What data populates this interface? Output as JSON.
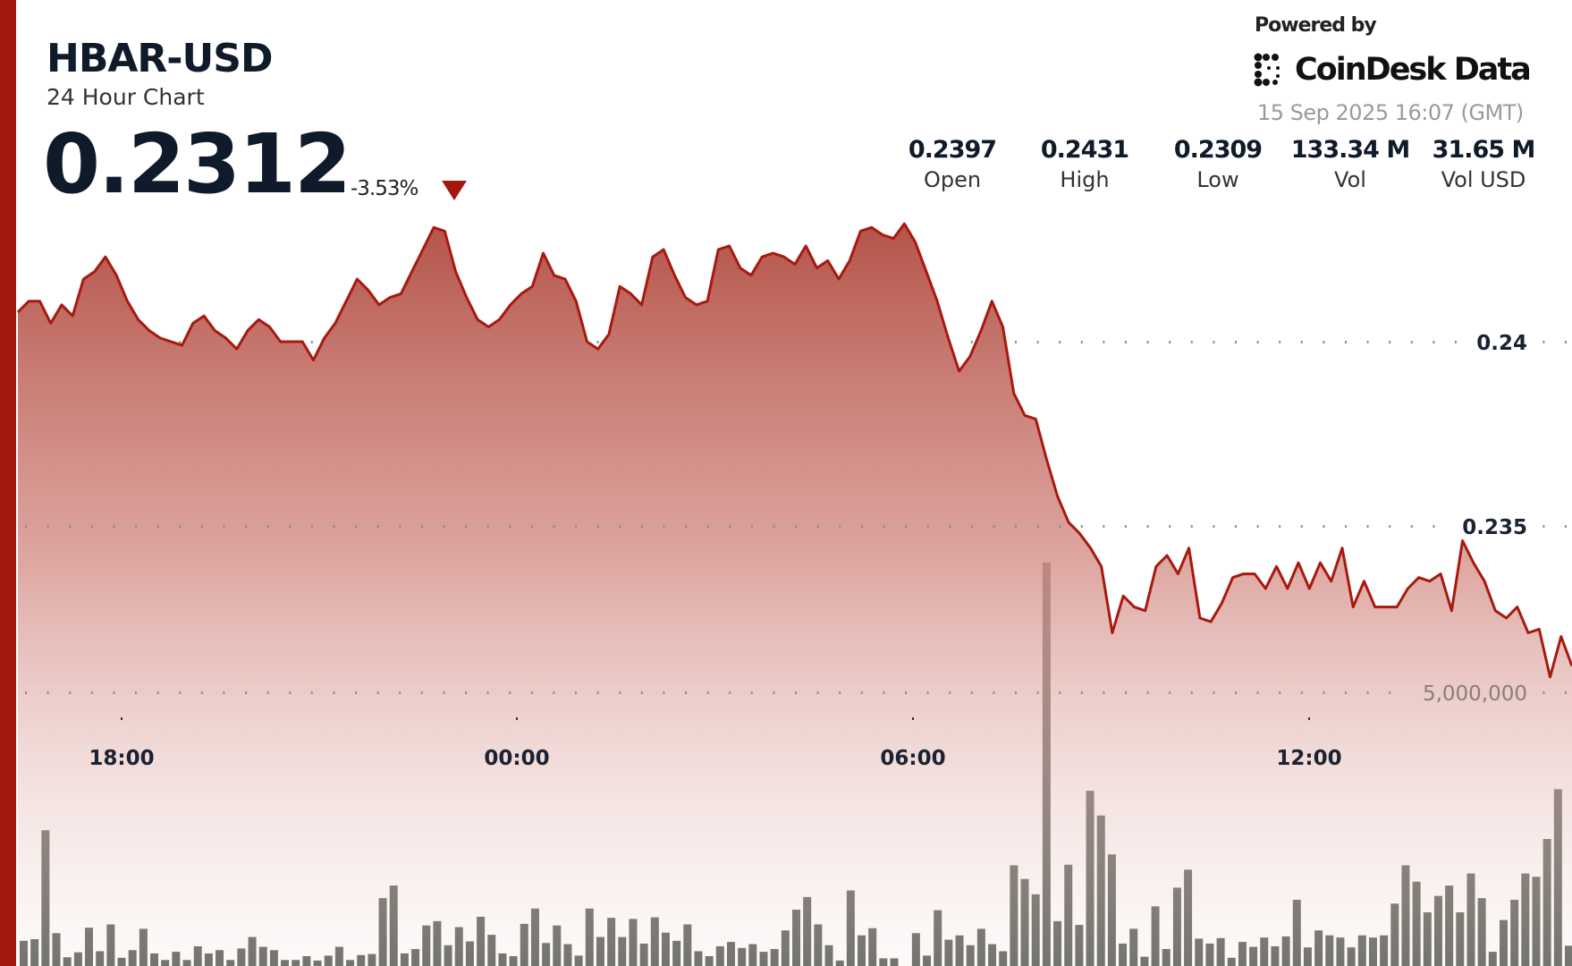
{
  "header": {
    "title": "HBAR-USD",
    "subtitle": "24 Hour Chart",
    "price": "0.2312",
    "change": "-3.53%",
    "change_direction": "down",
    "powered_by": "Powered by",
    "brand": "CoinDesk Data",
    "timestamp": "15 Sep 2025 16:07 (GMT)"
  },
  "stats": [
    {
      "value": "0.2397",
      "label": "Open"
    },
    {
      "value": "0.2431",
      "label": "High"
    },
    {
      "value": "0.2309",
      "label": "Low"
    },
    {
      "value": "133.34 M",
      "label": "Vol"
    },
    {
      "value": "31.65 M",
      "label": "Vol USD"
    }
  ],
  "colors": {
    "accent": "#a3180e",
    "line": "#a8190f",
    "volume_bar": "#5e625b",
    "fill_top": "#b5544a"
  },
  "chart_data": {
    "type": "area",
    "grid": "dotted horizontal",
    "x_tick_labels": [
      "18:00",
      "00:00",
      "06:00",
      "12:00"
    ],
    "y_tick_labels": [
      "0.24",
      "0.235"
    ],
    "volume_tick_labels": [
      "5,000,000"
    ],
    "price_series": [
      0.2408,
      0.2411,
      0.2411,
      0.2405,
      0.241,
      0.2407,
      0.2417,
      0.2419,
      0.2423,
      0.2418,
      0.2411,
      0.2406,
      0.2403,
      0.2401,
      0.24,
      0.2399,
      0.2405,
      0.2407,
      0.2403,
      0.2401,
      0.2398,
      0.2403,
      0.2406,
      0.2404,
      0.24,
      0.24,
      0.24,
      0.2395,
      0.2401,
      0.2405,
      0.2411,
      0.2417,
      0.2414,
      0.241,
      0.2412,
      0.2413,
      0.2419,
      0.2425,
      0.2431,
      0.243,
      0.2419,
      0.2412,
      0.2406,
      0.2404,
      0.2406,
      0.241,
      0.2413,
      0.2415,
      0.2424,
      0.2418,
      0.2417,
      0.2411,
      0.24,
      0.2398,
      0.2402,
      0.2415,
      0.2413,
      0.241,
      0.2423,
      0.2425,
      0.2418,
      0.2412,
      0.241,
      0.2411,
      0.2425,
      0.2426,
      0.242,
      0.2418,
      0.2423,
      0.2424,
      0.2423,
      0.2421,
      0.2426,
      0.242,
      0.2422,
      0.2417,
      0.2422,
      0.243,
      0.2431,
      0.2429,
      0.2428,
      0.2432,
      0.2427,
      0.2419,
      0.2411,
      0.2401,
      0.2392,
      0.2396,
      0.2403,
      0.2411,
      0.2404,
      0.2386,
      0.238,
      0.2379,
      0.2368,
      0.2358,
      0.2351,
      0.2348,
      0.2344,
      0.2339,
      0.2321,
      0.2331,
      0.2328,
      0.2327,
      0.2339,
      0.2342,
      0.2337,
      0.2344,
      0.2325,
      0.2324,
      0.2329,
      0.2336,
      0.2337,
      0.2337,
      0.2333,
      0.2339,
      0.2333,
      0.234,
      0.2333,
      0.234,
      0.2335,
      0.2344,
      0.2328,
      0.2335,
      0.2328,
      0.2328,
      0.2328,
      0.2333,
      0.2336,
      0.2335,
      0.2337,
      0.2327,
      0.2346,
      0.234,
      0.2335,
      0.2327,
      0.2325,
      0.2328,
      0.2321,
      0.2322,
      0.2309,
      0.232,
      0.2312
    ],
    "volume_series_millions": [
      0.46,
      0.49,
      2.48,
      0.6,
      0.16,
      0.25,
      0.7,
      0.27,
      0.76,
      0.15,
      0.29,
      0.68,
      0.23,
      0.11,
      0.26,
      0.11,
      0.36,
      0.23,
      0.29,
      0.11,
      0.32,
      0.53,
      0.35,
      0.29,
      0.11,
      0.11,
      0.18,
      0.1,
      0.19,
      0.35,
      0.11,
      0.2,
      0.22,
      1.24,
      1.47,
      0.23,
      0.31,
      0.74,
      0.82,
      0.38,
      0.71,
      0.45,
      0.9,
      0.57,
      0.23,
      0.18,
      0.77,
      1.05,
      0.42,
      0.74,
      0.4,
      0.19,
      1.05,
      0.53,
      0.88,
      0.53,
      0.86,
      0.41,
      0.89,
      0.61,
      0.46,
      0.76,
      0.27,
      0.18,
      0.36,
      0.44,
      0.33,
      0.4,
      0.26,
      0.31,
      0.65,
      1.03,
      1.26,
      0.76,
      0.38,
      0.1,
      1.38,
      0.56,
      0.69,
      0.14,
      0.14,
      0,
      0.6,
      0.19,
      1.02,
      0.48,
      0.56,
      0.38,
      0.68,
      0.4,
      0.27,
      1.84,
      1.59,
      1.31,
      7.37,
      0.82,
      1.85,
      0.75,
      3.2,
      2.75,
      2.04,
      0.41,
      0.68,
      0.17,
      1.09,
      0.31,
      1.43,
      1.76,
      0.5,
      0.41,
      0.51,
      0.15,
      0.44,
      0.35,
      0.52,
      0.36,
      0.54,
      1.21,
      0.34,
      0.65,
      0.56,
      0.52,
      0.34,
      0.56,
      0.52,
      0.56,
      1.14,
      1.84,
      1.54,
      0.98,
      1.28,
      1.47,
      0.98,
      1.69,
      1.24,
      0.26,
      0.84,
      1.21,
      1.69,
      1.63,
      2.32,
      3.23,
      0.37
    ]
  }
}
